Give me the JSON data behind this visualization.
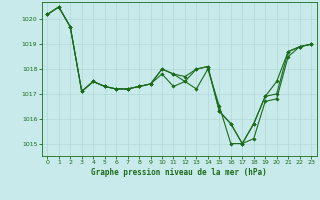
{
  "title": "Graphe pression niveau de la mer (hPa)",
  "background_color": "#c8eaea",
  "grid_color": "#b0d8d8",
  "line_color": "#1a6b1a",
  "marker_color": "#1a6b1a",
  "xlim": [
    -0.5,
    23.5
  ],
  "ylim": [
    1014.5,
    1020.7
  ],
  "yticks": [
    1015,
    1016,
    1017,
    1018,
    1019,
    1020
  ],
  "xticks": [
    0,
    1,
    2,
    3,
    4,
    5,
    6,
    7,
    8,
    9,
    10,
    11,
    12,
    13,
    14,
    15,
    16,
    17,
    18,
    19,
    20,
    21,
    22,
    23
  ],
  "series1": [
    1020.2,
    1020.5,
    1019.7,
    1017.1,
    1017.5,
    1017.3,
    1017.2,
    1017.2,
    1017.3,
    1017.4,
    1017.8,
    1017.3,
    1017.5,
    1017.2,
    1018.0,
    1016.5,
    1015.0,
    1015.0,
    1015.2,
    1016.7,
    1016.8,
    1018.5,
    1018.9,
    1019.0
  ],
  "series2": [
    1020.2,
    1020.5,
    1019.7,
    1017.1,
    1017.5,
    1017.3,
    1017.2,
    1017.2,
    1017.3,
    1017.4,
    1018.0,
    1017.8,
    1017.5,
    1018.0,
    1018.1,
    1016.3,
    1015.8,
    1015.0,
    1015.8,
    1016.9,
    1017.0,
    1018.7,
    1018.9,
    1019.0
  ],
  "series3": [
    1020.2,
    1020.5,
    1019.7,
    1017.1,
    1017.5,
    1017.3,
    1017.2,
    1017.2,
    1017.3,
    1017.4,
    1018.0,
    1017.8,
    1017.7,
    1018.0,
    1018.1,
    1016.3,
    1015.8,
    1015.0,
    1015.8,
    1016.9,
    1017.5,
    1018.7,
    1018.9,
    1019.0
  ]
}
